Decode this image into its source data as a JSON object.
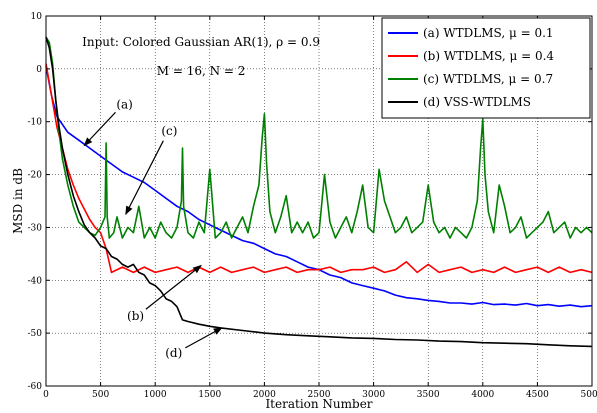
{
  "chart_data": {
    "type": "line",
    "xlabel": "Iteration Number",
    "ylabel": "MSD in dB",
    "xlim": [
      0,
      5000
    ],
    "ylim": [
      -60,
      10
    ],
    "xticks": [
      0,
      500,
      1000,
      1500,
      2000,
      2500,
      3000,
      3500,
      4000,
      4500,
      5000
    ],
    "yticks": [
      10,
      0,
      -10,
      -20,
      -30,
      -40,
      -50,
      -60
    ],
    "grid": true,
    "legend_position": "top-right",
    "annotations": [
      {
        "text": "Input: Colored Gaussian AR(1), ρ = 0.9"
      },
      {
        "text": "M = 16, N = 2"
      }
    ],
    "callouts": [
      {
        "label": "(a)",
        "text_at": [
          720,
          -7.5
        ],
        "arrow_to": [
          350,
          -14.5
        ]
      },
      {
        "label": "(c)",
        "text_at": [
          1130,
          -12.5
        ],
        "arrow_to": [
          730,
          -27.5
        ]
      },
      {
        "label": "(b)",
        "text_at": [
          820,
          -47.5
        ],
        "arrow_to": [
          1420,
          -37.2
        ]
      },
      {
        "label": "(d)",
        "text_at": [
          1170,
          -54.5
        ],
        "arrow_to": [
          1610,
          -49.0
        ]
      }
    ],
    "series": [
      {
        "name": "(a) WTDLMS, μ = 0.1",
        "color": "#0000ff",
        "x": [
          0,
          50,
          100,
          200,
          300,
          400,
          500,
          600,
          700,
          800,
          900,
          1000,
          1100,
          1200,
          1300,
          1400,
          1500,
          1600,
          1700,
          1800,
          1900,
          2000,
          2100,
          2200,
          2300,
          2400,
          2500,
          2600,
          2700,
          2800,
          2900,
          3000,
          3100,
          3200,
          3300,
          3400,
          3500,
          3600,
          3700,
          3800,
          3900,
          4000,
          4100,
          4200,
          4300,
          4400,
          4500,
          4600,
          4700,
          4800,
          4900,
          5000
        ],
        "y": [
          0.5,
          -5,
          -9,
          -12,
          -13.5,
          -15,
          -16.5,
          -18,
          -19.5,
          -20.5,
          -21.5,
          -23,
          -24.5,
          -26,
          -27,
          -28.5,
          -29.5,
          -30.5,
          -31.5,
          -32.5,
          -33,
          -34,
          -35,
          -35.5,
          -36.5,
          -37.5,
          -38,
          -39,
          -39.5,
          -40.5,
          -41,
          -41.5,
          -42,
          -42.8,
          -43.3,
          -43.5,
          -43.8,
          -44,
          -44.3,
          -44.3,
          -44.5,
          -44.2,
          -44.6,
          -44.5,
          -44.7,
          -44.4,
          -44.8,
          -44.6,
          -44.9,
          -44.7,
          -45,
          -44.8
        ]
      },
      {
        "name": "(b) WTDLMS, μ = 0.4",
        "color": "#ff0000",
        "x": [
          0,
          50,
          100,
          150,
          200,
          250,
          300,
          350,
          400,
          450,
          500,
          550,
          600,
          700,
          800,
          900,
          1000,
          1100,
          1200,
          1300,
          1400,
          1500,
          1600,
          1700,
          1800,
          1900,
          2000,
          2100,
          2200,
          2300,
          2400,
          2500,
          2600,
          2700,
          2800,
          2900,
          3000,
          3100,
          3200,
          3300,
          3400,
          3500,
          3600,
          3700,
          3800,
          3900,
          4000,
          4100,
          4200,
          4300,
          4400,
          4500,
          4600,
          4700,
          4800,
          4900,
          5000
        ],
        "y": [
          1,
          -5,
          -11,
          -15,
          -19,
          -22,
          -24.5,
          -26.5,
          -28.5,
          -30,
          -31,
          -34,
          -38.5,
          -37.5,
          -38.5,
          -37.5,
          -38.5,
          -38,
          -37.5,
          -38.5,
          -37.5,
          -38.5,
          -37.5,
          -38.5,
          -38,
          -37.5,
          -38.5,
          -38,
          -37.5,
          -38.5,
          -38,
          -38,
          -37.5,
          -38.5,
          -38,
          -38,
          -37.5,
          -38.5,
          -38,
          -36.5,
          -38.5,
          -37,
          -38.5,
          -38,
          -37.5,
          -38.5,
          -38,
          -38.5,
          -37.5,
          -38.5,
          -38,
          -37.5,
          -38.5,
          -37.5,
          -38.5,
          -38,
          -38.5
        ]
      },
      {
        "name": "(c) WTDLMS, μ = 0.7",
        "color": "#008000",
        "x": [
          0,
          30,
          60,
          90,
          120,
          150,
          200,
          250,
          300,
          350,
          400,
          450,
          500,
          540,
          550,
          560,
          580,
          620,
          650,
          700,
          750,
          800,
          850,
          900,
          950,
          1000,
          1050,
          1100,
          1150,
          1200,
          1240,
          1250,
          1260,
          1300,
          1350,
          1400,
          1450,
          1500,
          1550,
          1600,
          1650,
          1700,
          1750,
          1800,
          1850,
          1900,
          1950,
          1980,
          2000,
          2020,
          2050,
          2100,
          2150,
          2200,
          2250,
          2300,
          2350,
          2400,
          2450,
          2500,
          2550,
          2600,
          2650,
          2700,
          2750,
          2800,
          2850,
          2900,
          2950,
          3000,
          3050,
          3100,
          3150,
          3200,
          3250,
          3300,
          3350,
          3400,
          3450,
          3500,
          3550,
          3600,
          3650,
          3700,
          3750,
          3800,
          3850,
          3900,
          3950,
          3980,
          4000,
          4020,
          4050,
          4100,
          4150,
          4200,
          4250,
          4300,
          4350,
          4400,
          4450,
          4500,
          4550,
          4600,
          4650,
          4700,
          4750,
          4800,
          4850,
          4900,
          4950,
          5000
        ],
        "y": [
          6,
          5,
          1,
          -6,
          -12,
          -17,
          -22,
          -26,
          -29,
          -30,
          -31,
          -31.5,
          -30,
          -28,
          -14,
          -28,
          -32,
          -31,
          -28,
          -32,
          -30,
          -31,
          -26,
          -32,
          -30,
          -32,
          -29,
          -31,
          -32,
          -30,
          -25,
          -15,
          -26,
          -31,
          -32,
          -29,
          -31,
          -19,
          -32,
          -31,
          -29,
          -32,
          -30,
          -28,
          -31,
          -26,
          -22,
          -13,
          -8.5,
          -18,
          -27,
          -31,
          -28,
          -24,
          -31,
          -29,
          -31,
          -29,
          -32,
          -31,
          -20,
          -29,
          -32,
          -30,
          -28,
          -31,
          -27,
          -22,
          -30,
          -31,
          -19,
          -25,
          -28,
          -31,
          -30,
          -28,
          -31,
          -30,
          -29,
          -22,
          -29,
          -31,
          -30,
          -32,
          -30,
          -31,
          -32,
          -30,
          -25,
          -15,
          -9.5,
          -20,
          -27,
          -31,
          -22,
          -26,
          -31,
          -30,
          -28,
          -32,
          -31,
          -30,
          -29,
          -27,
          -31,
          -30,
          -29,
          -32,
          -30,
          -31,
          -30,
          -31
        ]
      },
      {
        "name": "(d) VSS-WTDLMS",
        "color": "#000000",
        "x": [
          0,
          30,
          60,
          90,
          120,
          150,
          200,
          250,
          300,
          350,
          400,
          450,
          500,
          550,
          600,
          650,
          700,
          750,
          800,
          850,
          900,
          950,
          1000,
          1050,
          1100,
          1150,
          1200,
          1250,
          1300,
          1400,
          1500,
          1600,
          1800,
          2000,
          2200,
          2400,
          2600,
          2800,
          3000,
          3200,
          3400,
          3600,
          3800,
          4000,
          4200,
          4400,
          4600,
          4800,
          5000
        ],
        "y": [
          6,
          4,
          0,
          -6,
          -11,
          -15,
          -20,
          -24,
          -27,
          -29.5,
          -31,
          -32,
          -33.5,
          -34,
          -35.5,
          -36,
          -37,
          -37.5,
          -37,
          -38.5,
          -39,
          -40.5,
          -41,
          -42,
          -43.5,
          -44,
          -45,
          -47.5,
          -47.8,
          -48.3,
          -48.7,
          -49,
          -49.5,
          -50,
          -50.3,
          -50.5,
          -50.7,
          -50.9,
          -51,
          -51.2,
          -51.3,
          -51.5,
          -51.6,
          -51.8,
          -51.9,
          -52,
          -52.2,
          -52.4,
          -52.5
        ]
      }
    ]
  }
}
